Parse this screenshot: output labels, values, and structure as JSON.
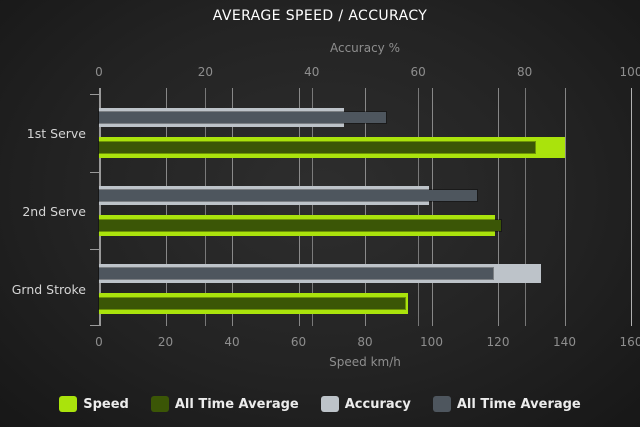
{
  "chart_data": {
    "type": "bar",
    "orientation": "horizontal",
    "title": "AVERAGE SPEED / ACCURACY",
    "categories": [
      "1st Serve",
      "2nd Serve",
      "Grnd Stroke"
    ],
    "axes": {
      "top": {
        "label": "Accuracy %",
        "ticks": [
          0,
          20,
          40,
          60,
          80,
          100
        ],
        "min": 0,
        "max": 100
      },
      "bottom": {
        "label": "Speed km/h",
        "ticks": [
          0,
          20,
          40,
          60,
          80,
          100,
          120,
          140,
          160
        ],
        "min": 0,
        "max": 160
      }
    },
    "series": [
      {
        "name": "Speed",
        "axis": "bottom",
        "role": "outer",
        "color": "#aae30c",
        "values": [
          140,
          119,
          93
        ]
      },
      {
        "name": "All Time Average",
        "axis": "bottom",
        "role": "inner",
        "color": "#3b5606",
        "values": [
          131,
          121,
          92
        ]
      },
      {
        "name": "Accuracy",
        "axis": "top",
        "role": "outer",
        "color": "#bdc3c9",
        "values": [
          46,
          62,
          83
        ]
      },
      {
        "name": "All Time Average",
        "axis": "top",
        "role": "inner",
        "color": "#4e565e",
        "values": [
          54,
          71,
          74
        ]
      }
    ],
    "legend": [
      {
        "label": "Speed",
        "color": "#aae30c"
      },
      {
        "label": "All Time Average",
        "color": "#3b5606"
      },
      {
        "label": "Accuracy",
        "color": "#bdc3c9"
      },
      {
        "label": "All Time Average",
        "color": "#4e565e"
      }
    ],
    "grid": true,
    "legend_position": "bottom",
    "background": "#1e1e1e",
    "gridline_color": "#8a8a8a",
    "text_color": "#8e8e8e",
    "title_color": "#ffffff"
  }
}
